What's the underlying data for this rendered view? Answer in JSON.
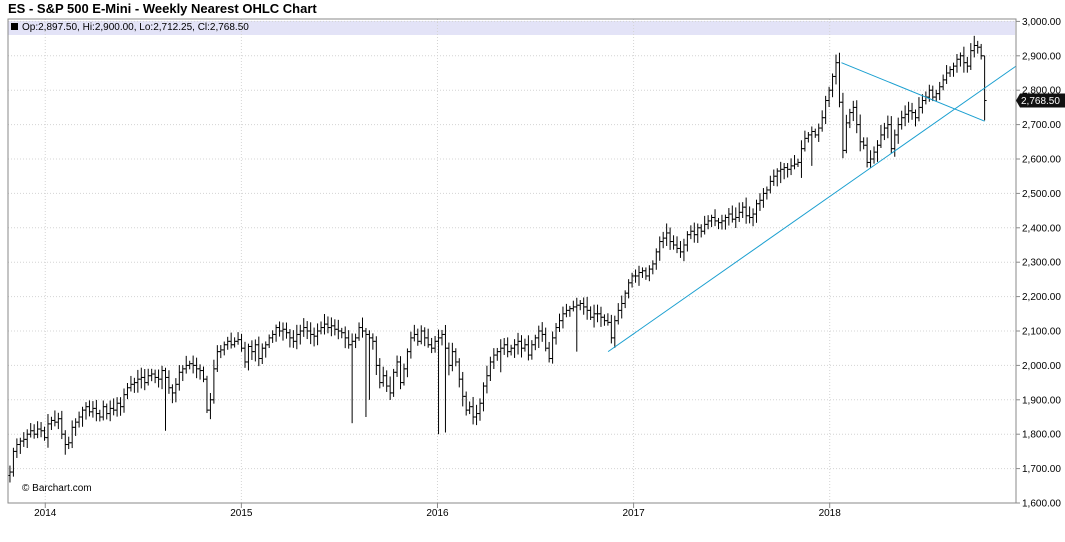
{
  "title": "ES - S&P 500 E-Mini - Weekly Nearest OHLC Chart",
  "legend": {
    "text": "Op:2,897.50, Hi:2,900.00, Lo:2,712.25, Cl:2,768.50"
  },
  "watermark": "© Barchart.com",
  "last_price_label": "2,768.50",
  "colors": {
    "bars": "#000000",
    "trendline": "#1a9fd0",
    "last_price_bg": "#111111",
    "legend_bg": "#e3e3f7"
  },
  "chart_data": {
    "type": "ohlc",
    "yaxis": {
      "range": [
        1600,
        3000
      ],
      "ticks": [
        1600,
        1700,
        1800,
        1900,
        2000,
        2100,
        2200,
        2300,
        2400,
        2500,
        2600,
        2700,
        2800,
        2900,
        3000
      ],
      "tick_labels": [
        "1,600.00",
        "1,700.00",
        "1,800.00",
        "1,900.00",
        "2,000.00",
        "2,100.00",
        "2,200.00",
        "2,300.00",
        "2,400.00",
        "2,500.00",
        "2,600.00",
        "2,700.00",
        "2,800.00",
        "2,900.00",
        "3,000.00"
      ]
    },
    "xaxis": {
      "year_labels": [
        "2014",
        "2015",
        "2016",
        "2017",
        "2018"
      ],
      "year_starts": [
        2014,
        2015,
        2016,
        2017,
        2018
      ],
      "range": [
        2013.81,
        2018.95
      ]
    },
    "closes": [
      1690,
      1750,
      1770,
      1780,
      1785,
      1800,
      1810,
      1800,
      1815,
      1810,
      1790,
      1830,
      1840,
      1835,
      1845,
      1800,
      1770,
      1775,
      1820,
      1835,
      1850,
      1870,
      1880,
      1865,
      1875,
      1860,
      1850,
      1880,
      1860,
      1875,
      1870,
      1890,
      1880,
      1915,
      1935,
      1945,
      1950,
      1960,
      1965,
      1950,
      1970,
      1975,
      1965,
      1960,
      1985,
      1965,
      1935,
      1920,
      1945,
      1980,
      1990,
      2000,
      2005,
      2000,
      1990,
      1985,
      1960,
      1870,
      1900,
      1990,
      2040,
      2045,
      2060,
      2070,
      2060,
      2070,
      2075,
      2050,
      2010,
      2055,
      2040,
      2060,
      2020,
      2050,
      2060,
      2080,
      2090,
      2110,
      2100,
      2105,
      2095,
      2080,
      2070,
      2090,
      2100,
      2110,
      2100,
      2090,
      2085,
      2100,
      2110,
      2120,
      2110,
      2115,
      2105,
      2100,
      2095,
      2080,
      2060,
      2070,
      2080,
      2110,
      2100,
      2090,
      2080,
      2070,
      2000,
      1950,
      1970,
      1940,
      1920,
      1980,
      2010,
      1950,
      1990,
      2040,
      2080,
      2090,
      2070,
      2100,
      2080,
      2060,
      2050,
      2070,
      2080,
      2090,
      2050,
      2000,
      2040,
      2010,
      1960,
      1910,
      1870,
      1880,
      1850,
      1860,
      1890,
      1940,
      1970,
      2010,
      2030,
      2040,
      2050,
      2060,
      2040,
      2050,
      2060,
      2070,
      2050,
      2060,
      2030,
      2060,
      2080,
      2100,
      2090,
      2050,
      2020,
      2080,
      2110,
      2130,
      2150,
      2160,
      2165,
      2170,
      2175,
      2180,
      2170,
      2160,
      2140,
      2150,
      2150,
      2140,
      2130,
      2125,
      2080,
      2130,
      2160,
      2180,
      2210,
      2240,
      2260,
      2260,
      2270,
      2275,
      2260,
      2280,
      2295,
      2330,
      2360,
      2370,
      2385,
      2360,
      2350,
      2340,
      2330,
      2350,
      2380,
      2390,
      2380,
      2400,
      2390,
      2410,
      2420,
      2430,
      2420,
      2415,
      2420,
      2430,
      2440,
      2425,
      2430,
      2445,
      2460,
      2435,
      2430,
      2440,
      2470,
      2480,
      2500,
      2510,
      2535,
      2550,
      2565,
      2570,
      2575,
      2570,
      2580,
      2585,
      2590,
      2630,
      2660,
      2670,
      2680,
      2670,
      2690,
      2720,
      2770,
      2800,
      2840,
      2880,
      2765,
      2625,
      2705,
      2735,
      2750,
      2700,
      2650,
      2640,
      2590,
      2600,
      2620,
      2640,
      2670,
      2690,
      2700,
      2630,
      2670,
      2700,
      2720,
      2730,
      2740,
      2735,
      2720,
      2750,
      2770,
      2780,
      2800,
      2780,
      2790,
      2810,
      2830,
      2850,
      2860,
      2870,
      2890,
      2900,
      2880,
      2870,
      2915,
      2930,
      2925,
      2900,
      2770
    ],
    "trendlines": [
      {
        "from": [
          2016.87,
          2040
        ],
        "to": [
          2018.95,
          2870
        ]
      },
      {
        "from": [
          2018.06,
          2880
        ],
        "to": [
          2018.79,
          2710
        ]
      }
    ]
  }
}
